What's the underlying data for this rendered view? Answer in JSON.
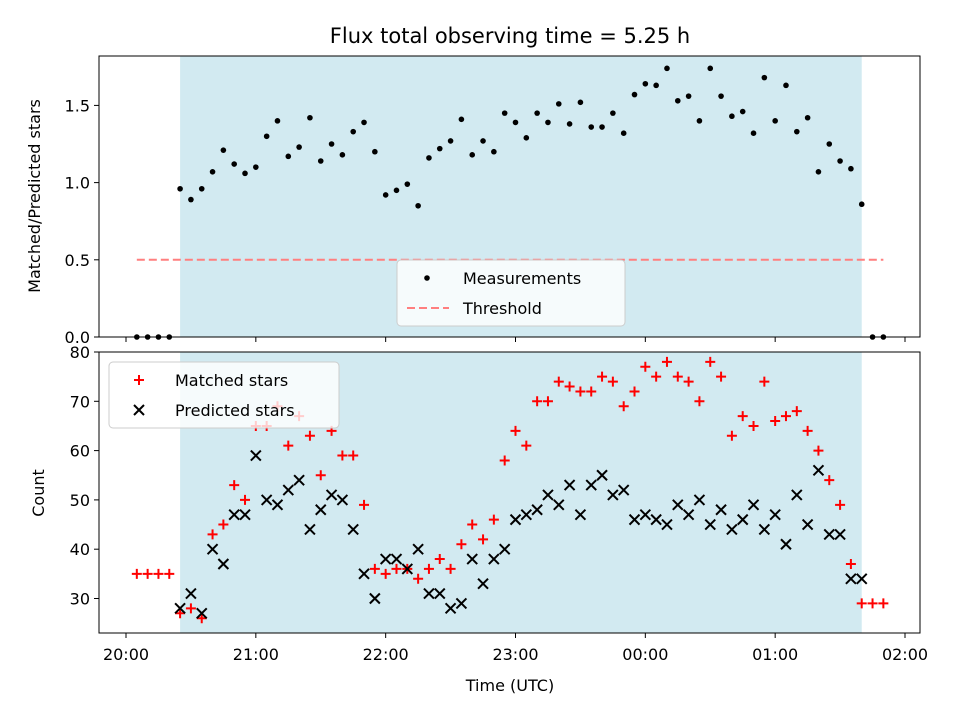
{
  "figure": {
    "title": "Flux total observing time = 5.25 h",
    "xlabel": "Time (UTC)"
  },
  "chart_data": [
    {
      "type": "scatter",
      "panel": "top",
      "ylabel": "Matched/Predicted stars",
      "xlim": [
        "20:00",
        "02:00"
      ],
      "x_tick_labels": [],
      "ylim": [
        0,
        1.82
      ],
      "y_ticks": [
        0.0,
        0.5,
        1.0,
        1.5
      ],
      "y_tick_labels": [
        "0.0",
        "0.5",
        "1.0",
        "1.5"
      ],
      "shaded_interval": [
        "20:25",
        "01:40"
      ],
      "shade_color": "#add8e6",
      "legend": {
        "placement": "lower-center",
        "entries": [
          "Measurements",
          "Threshold"
        ]
      },
      "series": [
        {
          "name": "Measurements",
          "kind": "scatter",
          "color": "#000000",
          "marker": "dot",
          "x": [
            "20:05",
            "20:10",
            "20:15",
            "20:20",
            "20:25",
            "20:30",
            "20:35",
            "20:40",
            "20:45",
            "20:50",
            "20:55",
            "21:00",
            "21:05",
            "21:10",
            "21:15",
            "21:20",
            "21:25",
            "21:30",
            "21:35",
            "21:40",
            "21:45",
            "21:50",
            "21:55",
            "22:00",
            "22:05",
            "22:10",
            "22:15",
            "22:20",
            "22:25",
            "22:30",
            "22:35",
            "22:40",
            "22:45",
            "22:50",
            "22:55",
            "23:00",
            "23:05",
            "23:10",
            "23:15",
            "23:20",
            "23:25",
            "23:30",
            "23:35",
            "23:40",
            "23:45",
            "23:50",
            "23:55",
            "00:00",
            "00:05",
            "00:10",
            "00:15",
            "00:20",
            "00:25",
            "00:30",
            "00:35",
            "00:40",
            "00:45",
            "00:50",
            "00:55",
            "01:00",
            "01:05",
            "01:10",
            "01:15",
            "01:20",
            "01:25",
            "01:30",
            "01:35",
            "01:40",
            "01:45",
            "01:50"
          ],
          "y": [
            0,
            0,
            0,
            0,
            0.96,
            0.89,
            0.96,
            1.07,
            1.21,
            1.12,
            1.06,
            1.1,
            1.3,
            1.4,
            1.17,
            1.23,
            1.42,
            1.14,
            1.25,
            1.18,
            1.33,
            1.39,
            1.2,
            0.92,
            0.95,
            0.99,
            0.85,
            1.16,
            1.22,
            1.27,
            1.41,
            1.18,
            1.27,
            1.2,
            1.45,
            1.39,
            1.29,
            1.45,
            1.39,
            1.51,
            1.38,
            1.52,
            1.36,
            1.36,
            1.45,
            1.32,
            1.57,
            1.64,
            1.63,
            1.74,
            1.53,
            1.56,
            1.4,
            1.74,
            1.56,
            1.43,
            1.46,
            1.32,
            1.68,
            1.4,
            1.63,
            1.33,
            1.42,
            1.07,
            1.25,
            1.14,
            1.09,
            0.86,
            0,
            0
          ]
        },
        {
          "name": "Threshold",
          "kind": "line",
          "color": "#ff7f7f",
          "dash": "dashed",
          "x": [
            "20:05",
            "01:50"
          ],
          "y": [
            0.5,
            0.5
          ]
        }
      ]
    },
    {
      "type": "scatter",
      "panel": "bottom",
      "ylabel": "Count",
      "xlabel": "Time (UTC)",
      "xlim": [
        "20:00",
        "02:00"
      ],
      "x_tick_labels": [
        "20:00",
        "21:00",
        "22:00",
        "23:00",
        "00:00",
        "01:00",
        "02:00"
      ],
      "ylim": [
        23,
        80
      ],
      "y_ticks": [
        30,
        40,
        50,
        60,
        70,
        80
      ],
      "y_tick_labels": [
        "30",
        "40",
        "50",
        "60",
        "70",
        "80"
      ],
      "shaded_interval": [
        "20:25",
        "01:40"
      ],
      "shade_color": "#add8e6",
      "legend": {
        "placement": "upper-left",
        "entries": [
          "Matched stars",
          "Predicted stars"
        ]
      },
      "series": [
        {
          "name": "Matched stars",
          "kind": "scatter",
          "color": "#ff0000",
          "marker": "plus",
          "x": [
            "20:05",
            "20:10",
            "20:15",
            "20:20",
            "20:25",
            "20:30",
            "20:35",
            "20:40",
            "20:45",
            "20:50",
            "20:55",
            "21:00",
            "21:05",
            "21:10",
            "21:15",
            "21:20",
            "21:25",
            "21:30",
            "21:35",
            "21:40",
            "21:45",
            "21:50",
            "21:55",
            "22:00",
            "22:05",
            "22:10",
            "22:15",
            "22:20",
            "22:25",
            "22:30",
            "22:35",
            "22:40",
            "22:45",
            "22:50",
            "22:55",
            "23:00",
            "23:05",
            "23:10",
            "23:15",
            "23:20",
            "23:25",
            "23:30",
            "23:35",
            "23:40",
            "23:45",
            "23:50",
            "23:55",
            "00:00",
            "00:05",
            "00:10",
            "00:15",
            "00:20",
            "00:25",
            "00:30",
            "00:35",
            "00:40",
            "00:45",
            "00:50",
            "00:55",
            "01:00",
            "01:05",
            "01:10",
            "01:15",
            "01:20",
            "01:25",
            "01:30",
            "01:35",
            "01:40",
            "01:45",
            "01:50"
          ],
          "y": [
            35,
            35,
            35,
            35,
            27,
            28,
            26,
            43,
            45,
            53,
            50,
            65,
            65,
            69,
            61,
            67,
            63,
            55,
            64,
            59,
            59,
            49,
            36,
            35,
            36,
            36,
            34,
            36,
            38,
            36,
            41,
            45,
            42,
            46,
            58,
            64,
            61,
            70,
            70,
            74,
            73,
            72,
            72,
            75,
            74,
            69,
            72,
            77,
            75,
            78,
            75,
            74,
            70,
            78,
            75,
            63,
            67,
            65,
            74,
            66,
            67,
            68,
            64,
            60,
            54,
            49,
            37,
            29,
            29,
            29
          ]
        },
        {
          "name": "Predicted stars",
          "kind": "scatter",
          "color": "#000000",
          "marker": "x",
          "x": [
            "20:25",
            "20:30",
            "20:35",
            "20:40",
            "20:45",
            "20:50",
            "20:55",
            "21:00",
            "21:05",
            "21:10",
            "21:15",
            "21:20",
            "21:25",
            "21:30",
            "21:35",
            "21:40",
            "21:45",
            "21:50",
            "21:55",
            "22:00",
            "22:05",
            "22:10",
            "22:15",
            "22:20",
            "22:25",
            "22:30",
            "22:35",
            "22:40",
            "22:45",
            "22:50",
            "22:55",
            "23:00",
            "23:05",
            "23:10",
            "23:15",
            "23:20",
            "23:25",
            "23:30",
            "23:35",
            "23:40",
            "23:45",
            "23:50",
            "23:55",
            "00:00",
            "00:05",
            "00:10",
            "00:15",
            "00:20",
            "00:25",
            "00:30",
            "00:35",
            "00:40",
            "00:45",
            "00:50",
            "00:55",
            "01:00",
            "01:05",
            "01:10",
            "01:15",
            "01:20",
            "01:25",
            "01:30",
            "01:35",
            "01:40"
          ],
          "y": [
            28,
            31,
            27,
            40,
            37,
            47,
            47,
            59,
            50,
            49,
            52,
            54,
            44,
            48,
            51,
            50,
            44,
            35,
            30,
            38,
            38,
            36,
            40,
            31,
            31,
            28,
            29,
            38,
            33,
            38,
            40,
            46,
            47,
            48,
            51,
            49,
            53,
            47,
            53,
            55,
            51,
            52,
            46,
            47,
            46,
            45,
            49,
            47,
            50,
            45,
            48,
            44,
            46,
            49,
            44,
            47,
            41,
            51,
            45,
            56,
            43,
            43,
            34,
            34
          ]
        }
      ]
    }
  ]
}
